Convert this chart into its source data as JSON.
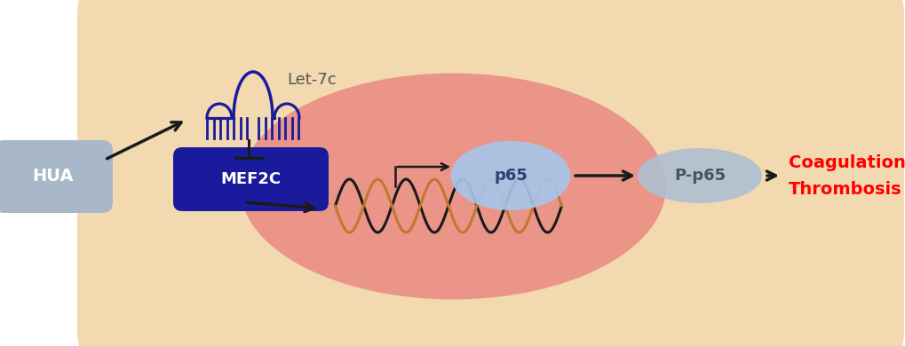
{
  "fig_width": 10.2,
  "fig_height": 3.9,
  "dpi": 100,
  "bg_color": "#FFFFFF",
  "cell_facecolor": "#F2D9B0",
  "cell_edgecolor": "#D4A84B",
  "nucleus_color": "#E87878",
  "nucleus_alpha": 0.7,
  "hua_box_color": "#A8B8C8",
  "hua_edge_color": "#8898A8",
  "mef2c_box_color": "#1A1A9C",
  "mef2c_edge_color": "#0A0A7C",
  "p65_ellipse_color": "#A8C4E8",
  "pp65_ellipse_color": "#B0C0D0",
  "let7c_color": "#1A1A9C",
  "let7c_label_color": "#555555",
  "dna_color1": "#1A1A1A",
  "dna_color2": "#C07830",
  "arrow_color": "#1A1A1A",
  "coag_color": "#FF0000",
  "text_hua": "HUA",
  "text_let7c": "Let-7c",
  "text_mef2c": "MEF2C",
  "text_p65": "p65",
  "text_pp65": "P-p65",
  "text_coag1": "Coagulation",
  "text_coag2": "Thrombosis",
  "xlim": [
    0,
    10.2
  ],
  "ylim": [
    0,
    3.9
  ]
}
